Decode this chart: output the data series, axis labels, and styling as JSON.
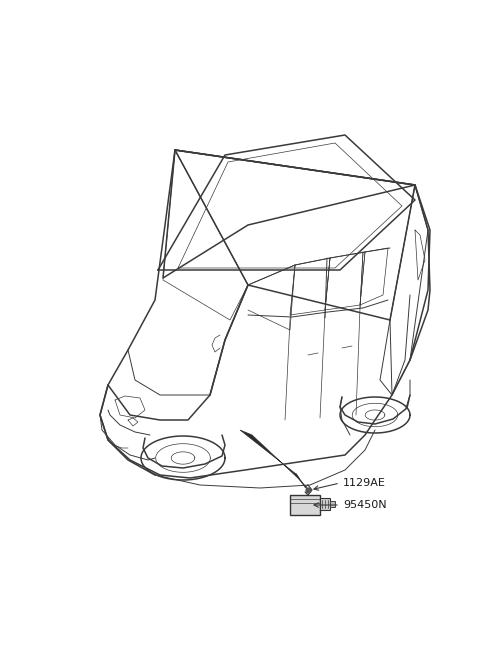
{
  "background_color": "#ffffff",
  "fig_width": 4.8,
  "fig_height": 6.55,
  "dpi": 100,
  "label_1": "1129AE",
  "label_2": "95450N",
  "line_color": "#3a3a3a",
  "lw_main": 1.1,
  "lw_detail": 0.7,
  "lw_thin": 0.5,
  "cable_color": "#2a2a2a",
  "part_fill": "#d8d8d8",
  "part_stroke": "#333333"
}
